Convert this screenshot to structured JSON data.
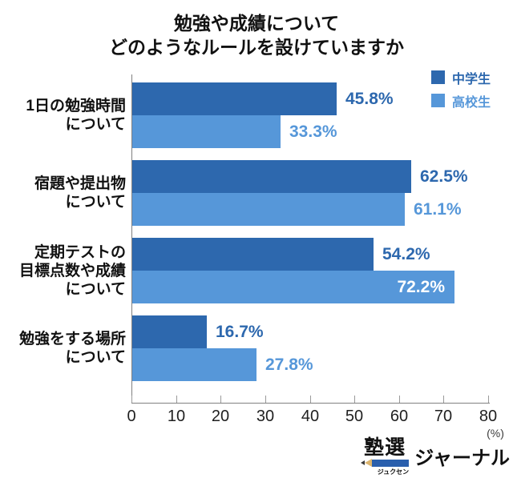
{
  "title": {
    "line1": "勉強や成績について",
    "line2": "どのようなルールを設けていますか"
  },
  "legend": {
    "items": [
      {
        "label": "中学生",
        "color": "#2d68ae"
      },
      {
        "label": "高校生",
        "color": "#5697d9"
      }
    ]
  },
  "chart_data": {
    "type": "bar",
    "orientation": "horizontal",
    "title": "勉強や成績についてどのようなルールを設けていますか",
    "categories": [
      [
        "1日の勉強時間",
        "について"
      ],
      [
        "宿題や提出物",
        "について"
      ],
      [
        "定期テストの",
        "目標点数や成績",
        "について"
      ],
      [
        "勉強をする場所",
        "について"
      ]
    ],
    "series": [
      {
        "name": "中学生",
        "color": "#2d68ae",
        "values": [
          45.8,
          62.5,
          54.2,
          16.7
        ],
        "labels": [
          "45.8%",
          "62.5%",
          "54.2%",
          "16.7%"
        ],
        "label_inside": [
          false,
          false,
          false,
          false
        ]
      },
      {
        "name": "高校生",
        "color": "#5697d9",
        "values": [
          33.3,
          61.1,
          72.2,
          27.8
        ],
        "labels": [
          "33.3%",
          "61.1%",
          "72.2%",
          "27.8%"
        ],
        "label_inside": [
          false,
          false,
          true,
          false
        ]
      }
    ],
    "xlim": [
      0,
      80
    ],
    "xticks": [
      0,
      10,
      20,
      30,
      40,
      50,
      60,
      70,
      80
    ],
    "xlabel": "(%)",
    "grid": false,
    "legend_position": "top-right",
    "inside_label_color": "#ffffff"
  },
  "logo": {
    "main": "塾選",
    "furigana": "ジュクセン",
    "suffix": "ジャーナル"
  }
}
